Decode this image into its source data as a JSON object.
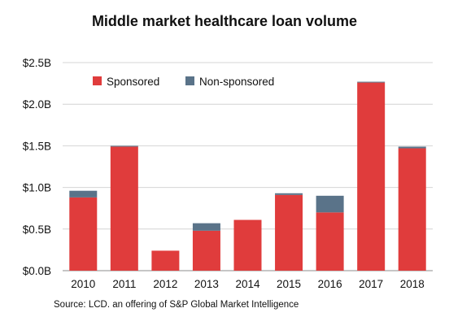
{
  "chart_data": {
    "type": "bar",
    "stacked": true,
    "title": "Middle market healthcare loan volume",
    "xlabel": "",
    "ylabel": "",
    "categories": [
      "2010",
      "2011",
      "2012",
      "2013",
      "2014",
      "2015",
      "2016",
      "2017",
      "2018"
    ],
    "series": [
      {
        "name": "Sponsored",
        "color": "#e03c3c",
        "values": [
          0.88,
          1.49,
          0.24,
          0.48,
          0.61,
          0.91,
          0.7,
          2.26,
          1.47
        ]
      },
      {
        "name": "Non-sponsored",
        "color": "#5a7389",
        "values": [
          0.08,
          0.01,
          0.0,
          0.09,
          0.0,
          0.02,
          0.2,
          0.01,
          0.02
        ]
      }
    ],
    "ylim": [
      0,
      2.5
    ],
    "yticks": [
      0,
      0.5,
      1.0,
      1.5,
      2.0,
      2.5
    ],
    "ytick_labels": [
      "$0.0B",
      "$0.5B",
      "$1.0B",
      "$1.5B",
      "$2.0B",
      "$2.5B"
    ],
    "grid": true,
    "legend_position": "top-left"
  },
  "source": "Source: LCD. an offering of S&P Global Market Intelligence"
}
